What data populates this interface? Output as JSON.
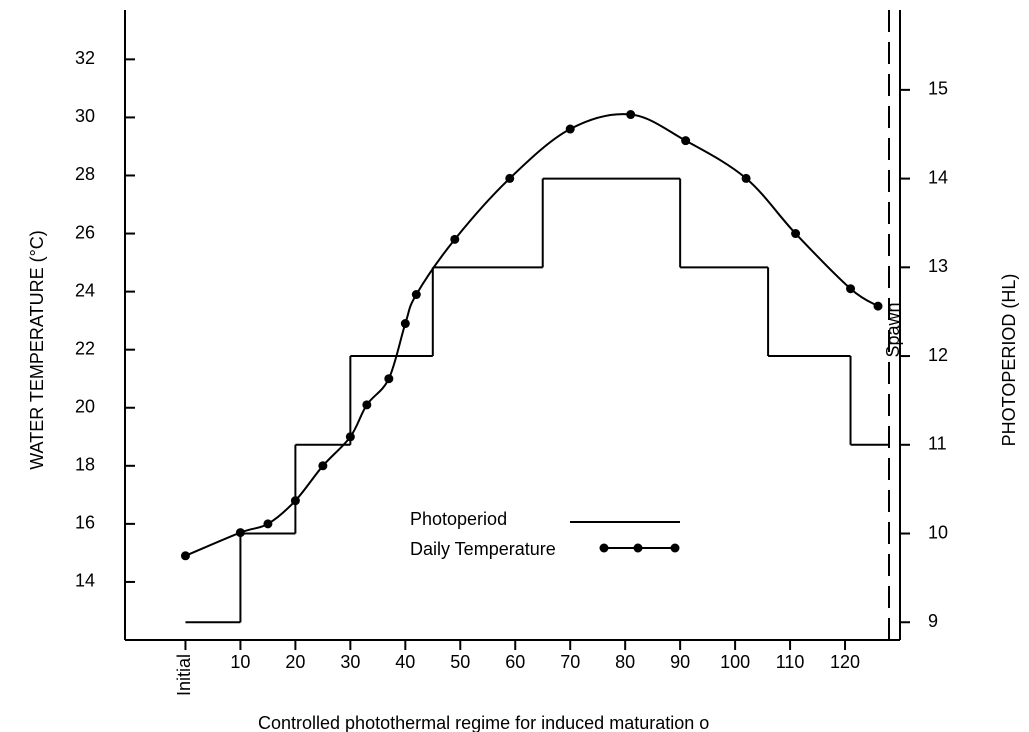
{
  "chart_data": {
    "type": "line",
    "title": "Controlled photothermal regime for induced maturation o",
    "ylabel": "WATER TEMPERATURE (°C)",
    "y2label": "PHOTOPERIOD (HL)",
    "xlim": [
      -11,
      130
    ],
    "xticks": [
      {
        "value": 0,
        "label": "Initial"
      },
      10,
      20,
      30,
      40,
      50,
      60,
      70,
      80,
      90,
      100,
      110,
      120
    ],
    "ylim": [
      12,
      33.7
    ],
    "yticks": [
      14,
      16,
      18,
      20,
      22,
      24,
      26,
      28,
      30,
      32
    ],
    "y2lim": [
      8.8,
      15.9
    ],
    "y2ticks": [
      9,
      10,
      11,
      12,
      13,
      14,
      15
    ],
    "series": [
      {
        "name": "Photoperiod",
        "type": "step",
        "axis": "y2",
        "color": "#000000",
        "x": [
          0,
          10,
          20,
          30,
          45,
          65,
          90,
          106,
          121
        ],
        "x_end": 128,
        "values": [
          9,
          10,
          11,
          12,
          13,
          14,
          13,
          12,
          11
        ]
      },
      {
        "name": "Daily Temperature",
        "type": "line",
        "color": "#000000",
        "x": [
          0,
          10,
          15,
          20,
          25,
          30,
          33,
          37,
          40,
          42,
          49,
          59,
          70,
          81,
          91,
          102,
          111,
          121,
          126
        ],
        "values": [
          14.9,
          15.7,
          16.0,
          16.8,
          18.0,
          19.0,
          20.1,
          21.0,
          22.9,
          23.9,
          25.8,
          27.9,
          29.6,
          30.1,
          29.2,
          27.9,
          26.0,
          24.1,
          23.5
        ]
      }
    ],
    "spawn": {
      "label": "Spawn",
      "x": 128
    }
  }
}
